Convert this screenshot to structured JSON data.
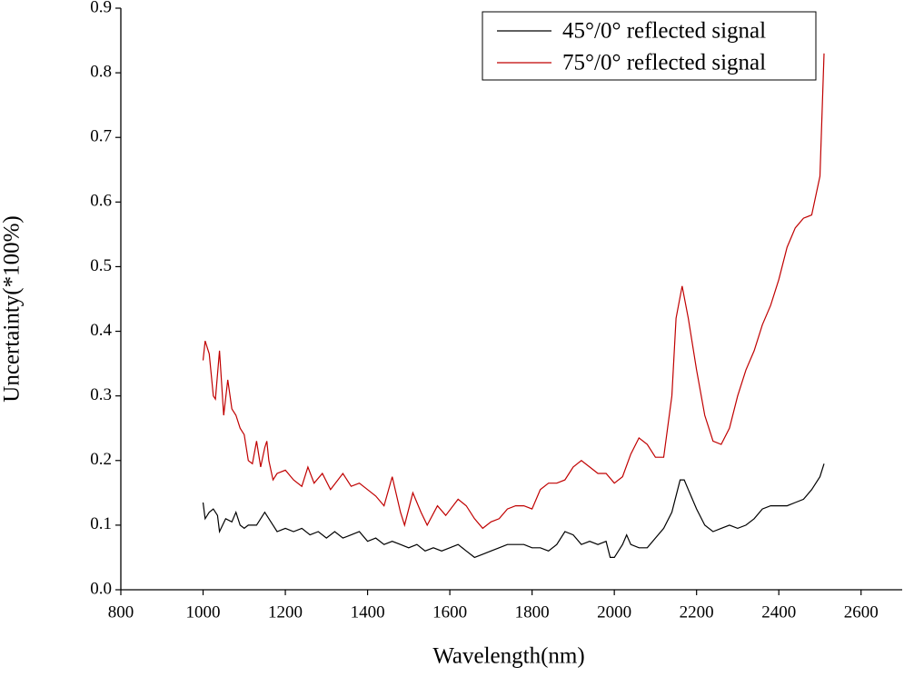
{
  "chart_data": {
    "type": "line",
    "xlabel": "Wavelength(nm)",
    "ylabel": "Uncertainty(*100%)",
    "xlim": [
      800,
      2700
    ],
    "xticks": [
      800,
      1000,
      1200,
      1400,
      1600,
      1800,
      2000,
      2200,
      2400,
      2600
    ],
    "ylim": [
      0,
      0.9
    ],
    "yticks": [
      {
        "value": 0,
        "label": "0.0"
      },
      0.1,
      0.2,
      0.3,
      0.4,
      0.5,
      0.6,
      0.7,
      0.8,
      0.9
    ],
    "legend": "upper right",
    "series": [
      {
        "name": "45°/0° reflected signal",
        "color": "#000000",
        "x": [
          1000,
          1005,
          1015,
          1025,
          1035,
          1040,
          1055,
          1070,
          1080,
          1090,
          1100,
          1110,
          1130,
          1150,
          1170,
          1180,
          1200,
          1220,
          1240,
          1260,
          1280,
          1300,
          1320,
          1340,
          1360,
          1380,
          1400,
          1420,
          1440,
          1460,
          1480,
          1500,
          1520,
          1540,
          1560,
          1580,
          1600,
          1620,
          1640,
          1660,
          1680,
          1700,
          1720,
          1740,
          1760,
          1780,
          1800,
          1820,
          1840,
          1860,
          1880,
          1900,
          1920,
          1940,
          1960,
          1980,
          1990,
          2000,
          2020,
          2030,
          2040,
          2060,
          2080,
          2100,
          2120,
          2140,
          2160,
          2170,
          2180,
          2200,
          2220,
          2240,
          2260,
          2280,
          2300,
          2320,
          2340,
          2360,
          2380,
          2400,
          2420,
          2440,
          2460,
          2480,
          2500,
          2510
        ],
        "values": [
          0.135,
          0.11,
          0.12,
          0.125,
          0.115,
          0.09,
          0.11,
          0.105,
          0.12,
          0.1,
          0.095,
          0.1,
          0.1,
          0.12,
          0.1,
          0.09,
          0.095,
          0.09,
          0.095,
          0.085,
          0.09,
          0.08,
          0.09,
          0.08,
          0.085,
          0.09,
          0.075,
          0.08,
          0.07,
          0.075,
          0.07,
          0.065,
          0.07,
          0.06,
          0.065,
          0.06,
          0.065,
          0.07,
          0.06,
          0.05,
          0.055,
          0.06,
          0.065,
          0.07,
          0.07,
          0.07,
          0.065,
          0.065,
          0.06,
          0.07,
          0.09,
          0.085,
          0.07,
          0.075,
          0.07,
          0.075,
          0.05,
          0.05,
          0.07,
          0.085,
          0.07,
          0.065,
          0.065,
          0.08,
          0.095,
          0.12,
          0.17,
          0.17,
          0.155,
          0.125,
          0.1,
          0.09,
          0.095,
          0.1,
          0.095,
          0.1,
          0.11,
          0.125,
          0.13,
          0.13,
          0.13,
          0.135,
          0.14,
          0.155,
          0.175,
          0.195
        ]
      },
      {
        "name": "75°/0° reflected signal",
        "color": "#c00000",
        "x": [
          1000,
          1005,
          1015,
          1025,
          1030,
          1040,
          1050,
          1060,
          1070,
          1080,
          1090,
          1100,
          1110,
          1120,
          1130,
          1140,
          1150,
          1155,
          1160,
          1170,
          1180,
          1200,
          1220,
          1240,
          1255,
          1270,
          1290,
          1310,
          1340,
          1360,
          1380,
          1400,
          1420,
          1440,
          1460,
          1480,
          1490,
          1510,
          1530,
          1545,
          1570,
          1590,
          1620,
          1640,
          1660,
          1680,
          1700,
          1720,
          1740,
          1760,
          1780,
          1800,
          1820,
          1840,
          1860,
          1880,
          1900,
          1920,
          1940,
          1960,
          1980,
          2000,
          2020,
          2040,
          2060,
          2080,
          2100,
          2120,
          2140,
          2150,
          2165,
          2180,
          2200,
          2220,
          2240,
          2260,
          2280,
          2300,
          2320,
          2340,
          2360,
          2380,
          2400,
          2420,
          2440,
          2460,
          2480,
          2500,
          2510
        ],
        "values": [
          0.355,
          0.385,
          0.365,
          0.3,
          0.295,
          0.37,
          0.27,
          0.325,
          0.28,
          0.27,
          0.25,
          0.24,
          0.2,
          0.195,
          0.23,
          0.19,
          0.22,
          0.23,
          0.2,
          0.17,
          0.18,
          0.185,
          0.17,
          0.16,
          0.19,
          0.165,
          0.18,
          0.155,
          0.18,
          0.16,
          0.165,
          0.155,
          0.145,
          0.13,
          0.175,
          0.12,
          0.1,
          0.15,
          0.12,
          0.1,
          0.13,
          0.115,
          0.14,
          0.13,
          0.11,
          0.095,
          0.105,
          0.11,
          0.125,
          0.13,
          0.13,
          0.125,
          0.155,
          0.165,
          0.165,
          0.17,
          0.19,
          0.2,
          0.19,
          0.18,
          0.18,
          0.165,
          0.175,
          0.21,
          0.235,
          0.225,
          0.205,
          0.205,
          0.3,
          0.42,
          0.47,
          0.42,
          0.34,
          0.27,
          0.23,
          0.225,
          0.25,
          0.3,
          0.34,
          0.37,
          0.41,
          0.44,
          0.48,
          0.53,
          0.56,
          0.575,
          0.58,
          0.64,
          0.83
        ]
      }
    ]
  }
}
